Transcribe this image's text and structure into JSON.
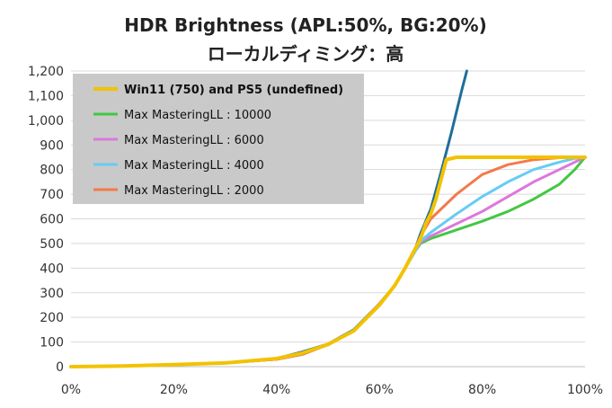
{
  "chart_data": {
    "type": "line",
    "title": "HDR Brightness (APL:50%, BG:20%)",
    "subtitle": "ローカルディミング：高",
    "xlabel": "",
    "ylabel": "",
    "xlim": [
      0,
      100
    ],
    "ylim": [
      0,
      1200
    ],
    "x_ticks": [
      "0%",
      "20%",
      "40%",
      "60%",
      "80%",
      "100%"
    ],
    "x_tick_values": [
      0,
      20,
      40,
      60,
      80,
      100
    ],
    "y_ticks": [
      "0",
      "100",
      "200",
      "300",
      "400",
      "500",
      "600",
      "700",
      "800",
      "900",
      "1,000",
      "1,100",
      "1,200"
    ],
    "y_tick_values": [
      0,
      100,
      200,
      300,
      400,
      500,
      600,
      700,
      800,
      900,
      1000,
      1100,
      1200
    ],
    "grid": "horizontal",
    "legend_position": "top-left",
    "series": [
      {
        "name": "Win11 (750) and PS5 (undefined)",
        "color": "#f2c200",
        "bold": true,
        "x": [
          0,
          10,
          20,
          30,
          40,
          45,
          50,
          55,
          60,
          63,
          65,
          67,
          68,
          69,
          70,
          71,
          72,
          73,
          75,
          80,
          85,
          90,
          95,
          100
        ],
        "y": [
          0,
          3,
          8,
          15,
          33,
          55,
          90,
          145,
          250,
          330,
          400,
          480,
          520,
          580,
          620,
          680,
          760,
          840,
          850,
          850,
          850,
          850,
          850,
          850
        ]
      },
      {
        "name": "Max MasteringLL : 10000",
        "color": "#44c744",
        "x": [
          0,
          10,
          20,
          30,
          40,
          45,
          50,
          55,
          60,
          63,
          65,
          67,
          68,
          70,
          75,
          80,
          85,
          90,
          95,
          98,
          100
        ],
        "y": [
          0,
          3,
          8,
          15,
          30,
          50,
          90,
          145,
          255,
          330,
          400,
          470,
          500,
          520,
          555,
          590,
          630,
          680,
          740,
          800,
          850
        ]
      },
      {
        "name": "Max MasteringLL : 6000",
        "color": "#dd77dd",
        "x": [
          0,
          10,
          20,
          30,
          40,
          45,
          50,
          55,
          60,
          63,
          65,
          67,
          68,
          70,
          75,
          80,
          85,
          90,
          95,
          98,
          100
        ],
        "y": [
          0,
          3,
          8,
          15,
          30,
          50,
          90,
          145,
          255,
          330,
          400,
          470,
          505,
          530,
          580,
          630,
          690,
          750,
          800,
          830,
          850
        ]
      },
      {
        "name": "Max MasteringLL : 4000",
        "color": "#66ccf5",
        "x": [
          0,
          10,
          20,
          30,
          40,
          45,
          50,
          55,
          60,
          63,
          65,
          67,
          68,
          70,
          75,
          80,
          85,
          90,
          95,
          98,
          100
        ],
        "y": [
          0,
          3,
          8,
          15,
          30,
          50,
          90,
          145,
          255,
          330,
          400,
          470,
          510,
          545,
          620,
          690,
          750,
          800,
          830,
          845,
          850
        ]
      },
      {
        "name": "Max MasteringLL : 2000",
        "color": "#f37a4a",
        "x": [
          0,
          10,
          20,
          30,
          40,
          45,
          50,
          55,
          60,
          63,
          65,
          67,
          68,
          70,
          75,
          80,
          85,
          90,
          95,
          100
        ],
        "y": [
          0,
          3,
          8,
          15,
          30,
          50,
          90,
          145,
          255,
          330,
          400,
          480,
          530,
          600,
          700,
          780,
          820,
          840,
          848,
          850
        ]
      },
      {
        "name": "",
        "color": "#1f6e9a",
        "in_legend": false,
        "x": [
          0,
          10,
          20,
          30,
          40,
          45,
          50,
          55,
          60,
          63,
          65,
          67,
          68,
          70,
          72,
          74,
          76,
          77
        ],
        "y": [
          0,
          3,
          8,
          15,
          33,
          60,
          92,
          150,
          255,
          330,
          400,
          480,
          540,
          640,
          790,
          950,
          1120,
          1200
        ]
      }
    ]
  }
}
